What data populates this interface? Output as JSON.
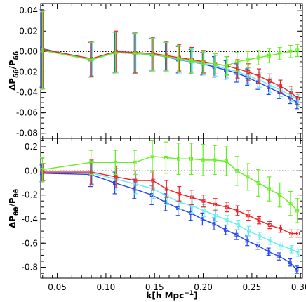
{
  "chart_data": [
    {
      "type": "line",
      "ylabel": "ΔP_δδ/P_δδ",
      "ylabel_parts": {
        "delta": "ΔP",
        "sub1": "δδ",
        "slash": "/P",
        "sub2": "δδ"
      },
      "xlabel": "",
      "xlim": [
        0.033,
        0.302
      ],
      "ylim": [
        -0.085,
        0.047
      ],
      "yticks": [
        -0.08,
        -0.06,
        -0.04,
        -0.02,
        0.0,
        0.02,
        0.04
      ],
      "ytick_labels": [
        "-0.08",
        "-0.06",
        "-0.04",
        "-0.02",
        "0.00",
        "0.02",
        "0.04"
      ],
      "reference_line": 0,
      "x": [
        0.035,
        0.085,
        0.11,
        0.13,
        0.148,
        0.162,
        0.175,
        0.188,
        0.2,
        0.212,
        0.224,
        0.235,
        0.246,
        0.257,
        0.268,
        0.279,
        0.29,
        0.297
      ],
      "series": [
        {
          "color": "#2244ee",
          "values": [
            0.003,
            -0.008,
            -0.001,
            -0.002,
            -0.003,
            -0.005,
            -0.008,
            -0.01,
            -0.012,
            -0.015,
            -0.018,
            -0.021,
            -0.025,
            -0.03,
            -0.035,
            -0.04,
            -0.045,
            -0.05
          ],
          "errors": [
            0.038,
            0.017,
            0.02,
            0.02,
            0.016,
            0.014,
            0.013,
            0.012,
            0.011,
            0.01,
            0.009,
            0.009,
            0.008,
            0.007,
            0.007,
            0.006,
            0.006,
            0.006
          ]
        },
        {
          "color": "#66eeee",
          "values": [
            0.002,
            -0.008,
            -0.001,
            -0.002,
            -0.003,
            -0.005,
            -0.008,
            -0.01,
            -0.012,
            -0.014,
            -0.017,
            -0.02,
            -0.024,
            -0.028,
            -0.033,
            -0.038,
            -0.043,
            -0.048
          ],
          "errors": [
            0.038,
            0.017,
            0.02,
            0.02,
            0.016,
            0.014,
            0.013,
            0.012,
            0.011,
            0.01,
            0.009,
            0.009,
            0.008,
            0.007,
            0.007,
            0.006,
            0.006,
            0.006
          ]
        },
        {
          "color": "#ee2222",
          "values": [
            0.002,
            -0.007,
            0.0,
            -0.001,
            -0.002,
            -0.004,
            -0.006,
            -0.008,
            -0.01,
            -0.012,
            -0.014,
            -0.017,
            -0.02,
            -0.024,
            -0.029,
            -0.034,
            -0.04,
            -0.046
          ],
          "errors": [
            0.038,
            0.017,
            0.02,
            0.02,
            0.016,
            0.014,
            0.013,
            0.012,
            0.011,
            0.01,
            0.009,
            0.009,
            0.008,
            0.007,
            0.007,
            0.006,
            0.006,
            0.006
          ]
        },
        {
          "color": "#66ee22",
          "values": [
            0.001,
            -0.008,
            -0.001,
            -0.002,
            -0.003,
            -0.005,
            -0.007,
            -0.009,
            -0.011,
            -0.012,
            -0.014,
            -0.01,
            -0.008,
            -0.006,
            -0.004,
            -0.002,
            0.0,
            0.001
          ],
          "errors": [
            0.038,
            0.017,
            0.02,
            0.02,
            0.016,
            0.014,
            0.013,
            0.012,
            0.011,
            0.01,
            0.009,
            0.009,
            0.008,
            0.007,
            0.007,
            0.006,
            0.006,
            0.006
          ]
        }
      ]
    },
    {
      "type": "line",
      "ylabel": "ΔP_θθ/P_θθ",
      "ylabel_parts": {
        "delta": "ΔP",
        "sub1": "θθ",
        "slash": "/P",
        "sub2": "θθ"
      },
      "xlabel": "k[h Mpc⁻¹]",
      "xlabel_parts": {
        "main": "k[h Mpc",
        "sup": "−1",
        "close": "]"
      },
      "xlim": [
        0.033,
        0.302
      ],
      "ylim": [
        -0.89,
        0.27
      ],
      "xticks": [
        0.05,
        0.1,
        0.15,
        0.2,
        0.25,
        0.3
      ],
      "xtick_labels": [
        "0.05",
        "0.10",
        "0.15",
        "0.20",
        "0.25",
        "0.30"
      ],
      "yticks": [
        -0.8,
        -0.6,
        -0.4,
        -0.2,
        0.0,
        0.2
      ],
      "ytick_labels": [
        "-0.8",
        "-0.6",
        "-0.4",
        "-0.2",
        "0.0",
        "0.2"
      ],
      "reference_line": 0,
      "x": [
        0.035,
        0.085,
        0.11,
        0.13,
        0.148,
        0.162,
        0.175,
        0.188,
        0.2,
        0.212,
        0.224,
        0.235,
        0.246,
        0.257,
        0.268,
        0.279,
        0.29,
        0.297
      ],
      "series": [
        {
          "color": "#2244ee",
          "values": [
            -0.02,
            -0.03,
            -0.1,
            -0.15,
            -0.2,
            -0.26,
            -0.31,
            -0.35,
            -0.4,
            -0.44,
            -0.49,
            -0.53,
            -0.58,
            -0.62,
            -0.67,
            -0.71,
            -0.76,
            -0.82
          ],
          "errors": [
            0.07,
            0.1,
            0.09,
            0.08,
            0.08,
            0.07,
            0.06,
            0.06,
            0.05,
            0.05,
            0.04,
            0.04,
            0.04,
            0.03,
            0.03,
            0.03,
            0.03,
            0.03
          ]
        },
        {
          "color": "#66eeee",
          "values": [
            -0.01,
            -0.02,
            -0.07,
            -0.11,
            -0.15,
            -0.21,
            -0.26,
            -0.29,
            -0.33,
            -0.37,
            -0.41,
            -0.45,
            -0.5,
            -0.54,
            -0.58,
            -0.62,
            -0.65,
            -0.68
          ],
          "errors": [
            0.07,
            0.1,
            0.09,
            0.08,
            0.08,
            0.07,
            0.06,
            0.06,
            0.05,
            0.05,
            0.04,
            0.04,
            0.04,
            0.03,
            0.03,
            0.03,
            0.03,
            0.03
          ]
        },
        {
          "color": "#ee2222",
          "values": [
            -0.01,
            -0.01,
            -0.05,
            -0.08,
            -0.08,
            -0.15,
            -0.19,
            -0.22,
            -0.25,
            -0.28,
            -0.3,
            -0.33,
            -0.37,
            -0.41,
            -0.45,
            -0.48,
            -0.52,
            -0.52
          ],
          "errors": [
            0.07,
            0.1,
            0.09,
            0.08,
            0.08,
            0.07,
            0.06,
            0.06,
            0.05,
            0.05,
            0.04,
            0.04,
            0.04,
            0.03,
            0.03,
            0.03,
            0.03,
            0.03
          ]
        },
        {
          "color": "#66ee22",
          "values": [
            0.01,
            0.07,
            0.07,
            0.07,
            0.12,
            0.11,
            0.1,
            0.1,
            0.09,
            0.09,
            0.08,
            0.0,
            -0.05,
            -0.1,
            -0.15,
            -0.2,
            -0.27,
            -0.33
          ],
          "errors": [
            0.1,
            0.1,
            0.1,
            0.1,
            0.13,
            0.13,
            0.13,
            0.13,
            0.13,
            0.12,
            0.12,
            0.12,
            0.11,
            0.11,
            0.1,
            0.1,
            0.1,
            0.1
          ]
        }
      ]
    }
  ]
}
